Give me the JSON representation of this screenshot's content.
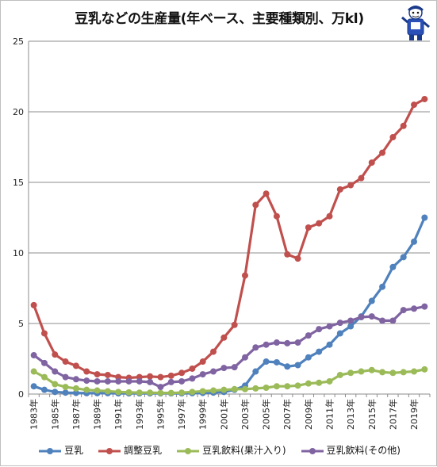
{
  "chart_data": {
    "type": "line",
    "title": "豆乳などの生産量(年ベース、主要種類別、万kl)",
    "xlabel": "",
    "ylabel": "",
    "ylim": [
      0,
      25
    ],
    "yticks": [
      "0",
      "5",
      "10",
      "15",
      "20",
      "25"
    ],
    "grid": true,
    "legend_position": "bottom",
    "x": [
      "1983年",
      "1984年",
      "1985年",
      "1986年",
      "1987年",
      "1988年",
      "1989年",
      "1990年",
      "1991年",
      "1992年",
      "1993年",
      "1994年",
      "1995年",
      "1996年",
      "1997年",
      "1998年",
      "1999年",
      "2000年",
      "2001年",
      "2002年",
      "2003年",
      "2004年",
      "2005年",
      "2006年",
      "2007年",
      "2008年",
      "2009年",
      "2010年",
      "2011年",
      "2012年",
      "2013年",
      "2014年",
      "2015年",
      "2016年",
      "2017年",
      "2018年",
      "2019年",
      "2020年"
    ],
    "xtick_labels": [
      "1983年",
      "1985年",
      "1987年",
      "1989年",
      "1991年",
      "1993年",
      "1995年",
      "1997年",
      "1999年",
      "2001年",
      "2003年",
      "2005年",
      "2007年",
      "2009年",
      "2011年",
      "2013年",
      "2015年",
      "2017年",
      "2019年"
    ],
    "series": [
      {
        "name": "豆乳",
        "color": "#4f81bd",
        "values": [
          0.55,
          0.3,
          0.15,
          0.1,
          0.08,
          0.06,
          0.06,
          0.06,
          0.05,
          0.05,
          0.05,
          0.05,
          0.05,
          0.05,
          0.05,
          0.06,
          0.08,
          0.1,
          0.15,
          0.3,
          0.6,
          1.6,
          2.3,
          2.25,
          1.95,
          2.05,
          2.6,
          3.0,
          3.5,
          4.3,
          4.8,
          5.5,
          6.6,
          7.6,
          9.0,
          9.7,
          10.8,
          12.5
        ]
      },
      {
        "name": "調整豆乳",
        "color": "#c0504d",
        "values": [
          6.3,
          4.3,
          2.8,
          2.3,
          2.0,
          1.6,
          1.4,
          1.35,
          1.2,
          1.15,
          1.2,
          1.25,
          1.2,
          1.3,
          1.5,
          1.8,
          2.3,
          3.0,
          4.0,
          4.9,
          8.4,
          13.4,
          14.2,
          12.6,
          9.9,
          9.6,
          11.8,
          12.1,
          12.6,
          14.5,
          14.8,
          15.3,
          16.4,
          17.1,
          18.2,
          19.0,
          20.5,
          20.9
        ]
      },
      {
        "name": "豆乳飲料(果汁入り)",
        "color": "#9bbb59",
        "values": [
          1.6,
          1.2,
          0.7,
          0.5,
          0.4,
          0.3,
          0.25,
          0.2,
          0.15,
          0.12,
          0.1,
          0.1,
          0.08,
          0.08,
          0.1,
          0.15,
          0.2,
          0.25,
          0.3,
          0.35,
          0.35,
          0.4,
          0.45,
          0.55,
          0.55,
          0.6,
          0.75,
          0.8,
          0.9,
          1.35,
          1.5,
          1.6,
          1.7,
          1.55,
          1.5,
          1.55,
          1.6,
          1.75
        ]
      },
      {
        "name": "豆乳飲料(その他)",
        "color": "#8064a2",
        "values": [
          2.75,
          2.2,
          1.6,
          1.2,
          1.05,
          0.95,
          0.9,
          0.9,
          0.9,
          0.9,
          0.9,
          0.85,
          0.5,
          0.85,
          0.9,
          1.1,
          1.4,
          1.6,
          1.85,
          1.9,
          2.6,
          3.3,
          3.5,
          3.65,
          3.6,
          3.65,
          4.15,
          4.6,
          4.8,
          5.05,
          5.2,
          5.45,
          5.5,
          5.2,
          5.2,
          5.95,
          6.05,
          6.2
        ]
      }
    ]
  }
}
